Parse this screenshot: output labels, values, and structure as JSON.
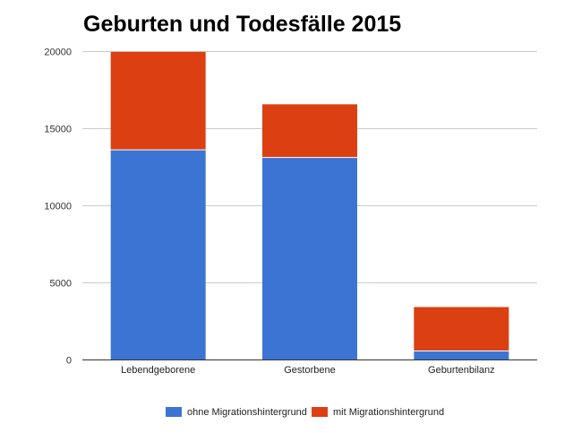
{
  "chart_data": {
    "type": "bar",
    "stacked": true,
    "title": "Geburten und Todesfälle 2015",
    "xlabel": "",
    "ylabel": "",
    "categories": [
      "Lebendgeborene",
      "Gestorbene",
      "Geburtenbilanz"
    ],
    "series": [
      {
        "name": "ohne Migrationshintergrund",
        "color": "#3c74d4",
        "values": [
          13600,
          13100,
          550
        ]
      },
      {
        "name": "mit Migrationshintergrund",
        "color": "#dc3f11",
        "values": [
          6350,
          3450,
          2850
        ]
      }
    ],
    "ylim": [
      0,
      20000
    ],
    "yticks": [
      0,
      5000,
      10000,
      15000,
      20000
    ],
    "ytick_labels": [
      "0",
      "5000",
      "10000",
      "15000",
      "20000"
    ],
    "grid": true,
    "legend_position": "bottom"
  }
}
